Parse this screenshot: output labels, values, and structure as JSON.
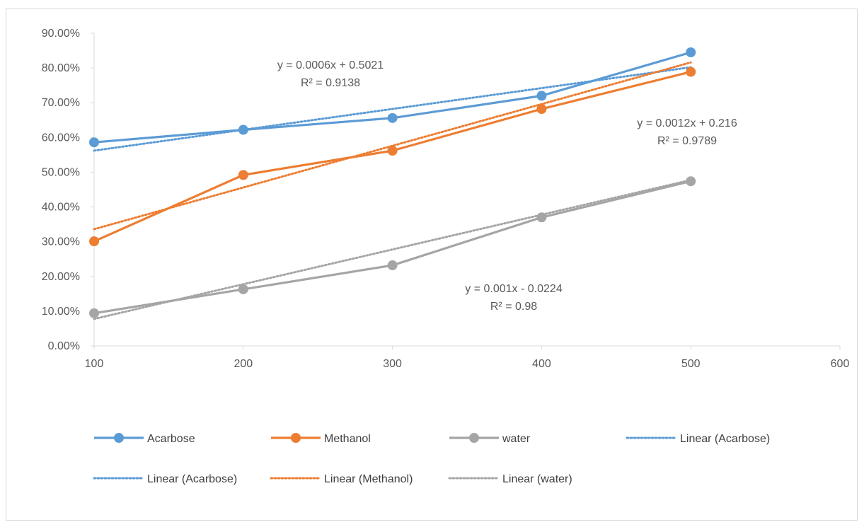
{
  "chart_data": {
    "type": "line",
    "title": "",
    "xlabel": "",
    "ylabel": "",
    "xlim": [
      100,
      600
    ],
    "ylim": [
      0,
      0.9
    ],
    "x_ticks": [
      100,
      200,
      300,
      400,
      500,
      600
    ],
    "x_tick_labels": [
      "100",
      "200",
      "300",
      "400",
      "500",
      "600"
    ],
    "y_ticks": [
      0,
      0.1,
      0.2,
      0.3,
      0.4,
      0.5,
      0.6,
      0.7,
      0.8,
      0.9
    ],
    "y_tick_labels": [
      "0.00%",
      "10.00%",
      "20.00%",
      "30.00%",
      "40.00%",
      "50.00%",
      "60.00%",
      "70.00%",
      "80.00%",
      "90.00%"
    ],
    "grid": false,
    "legend_position": "bottom",
    "x": [
      100,
      200,
      300,
      400,
      500
    ],
    "series": [
      {
        "name": "Acarbose",
        "color": "#5b9bd5",
        "values": [
          0.586,
          0.622,
          0.656,
          0.72,
          0.845
        ]
      },
      {
        "name": "Methanol",
        "color": "#ed7d31",
        "values": [
          0.301,
          0.492,
          0.562,
          0.682,
          0.789
        ]
      },
      {
        "name": "water",
        "color": "#a5a5a5",
        "values": [
          0.094,
          0.163,
          0.232,
          0.37,
          0.474
        ]
      }
    ],
    "trendlines": [
      {
        "name": "Linear (Acarbose)",
        "color": "#5b9bd5",
        "slope": 0.0006,
        "intercept": 0.5021,
        "x_range": [
          100,
          500
        ]
      },
      {
        "name": "Linear (Methanol)",
        "color": "#ed7d31",
        "slope": 0.0012,
        "intercept": 0.216,
        "x_range": [
          100,
          500
        ]
      },
      {
        "name": "Linear (water)",
        "color": "#a5a5a5",
        "slope": 0.001,
        "intercept": -0.0224,
        "x_range": [
          100,
          500
        ]
      }
    ],
    "annotations": [
      {
        "equation": "y = 0.0006x + 0.5021",
        "r2": "R² = 0.9138"
      },
      {
        "equation": "y = 0.0012x + 0.216",
        "r2": "R² = 0.9789"
      },
      {
        "equation": "y = 0.001x - 0.0224",
        "r2": "R² = 0.98"
      }
    ],
    "legend": [
      {
        "label": "Acarbose",
        "style": "solid-marker",
        "color": "#5b9bd5"
      },
      {
        "label": "Methanol",
        "style": "solid-marker",
        "color": "#ed7d31"
      },
      {
        "label": "water",
        "style": "solid-marker",
        "color": "#a5a5a5"
      },
      {
        "label": "Linear (Acarbose)",
        "style": "dotted",
        "color": "#5b9bd5"
      },
      {
        "label": "Linear (Acarbose)",
        "style": "dotted",
        "color": "#5b9bd5"
      },
      {
        "label": "Linear (Methanol)",
        "style": "dotted",
        "color": "#ed7d31"
      },
      {
        "label": "Linear (water)",
        "style": "dotted",
        "color": "#a5a5a5"
      }
    ]
  }
}
